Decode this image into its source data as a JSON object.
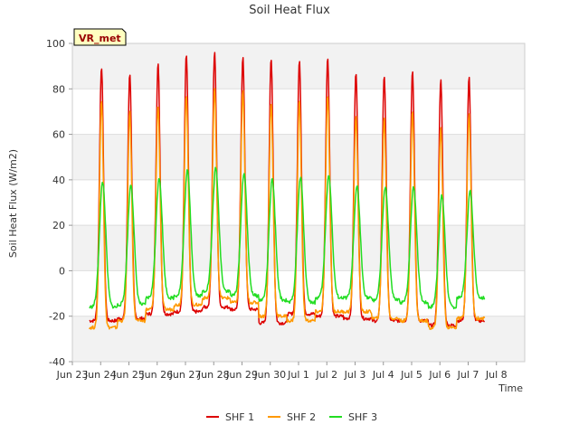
{
  "chart_data": {
    "type": "line",
    "title": "Soil Heat Flux",
    "xlabel": "Time",
    "ylabel": "Soil Heat Flux (W/m2)",
    "annotation": "VR_met",
    "ylim": [
      -40,
      100
    ],
    "yticks": [
      -40,
      -20,
      0,
      20,
      40,
      60,
      80,
      100
    ],
    "xlim_days": [
      0,
      16
    ],
    "xticks": [
      {
        "day": 0,
        "label": "Jun 23"
      },
      {
        "day": 1,
        "label": "Jun 24"
      },
      {
        "day": 2,
        "label": "Jun 25"
      },
      {
        "day": 3,
        "label": "Jun 26"
      },
      {
        "day": 4,
        "label": "Jun 27"
      },
      {
        "day": 5,
        "label": "Jun 28"
      },
      {
        "day": 6,
        "label": "Jun 29"
      },
      {
        "day": 7,
        "label": "Jun 30"
      },
      {
        "day": 8,
        "label": "Jul 1"
      },
      {
        "day": 9,
        "label": "Jul 2"
      },
      {
        "day": 10,
        "label": "Jul 3"
      },
      {
        "day": 11,
        "label": "Jul 4"
      },
      {
        "day": 12,
        "label": "Jul 5"
      },
      {
        "day": 13,
        "label": "Jul 6"
      },
      {
        "day": 14,
        "label": "Jul 7"
      },
      {
        "day": 15,
        "label": "Jul 8"
      }
    ],
    "series": [
      {
        "name": "SHF 1",
        "color": "#dd0000",
        "daily_peaks": [
          90,
          87,
          91,
          95,
          96,
          94,
          93,
          93,
          94,
          87,
          86,
          88,
          84,
          85
        ],
        "daily_minimums": [
          -22,
          -21,
          -19,
          -18,
          -16,
          -17,
          -23,
          -19,
          -20,
          -21,
          -22,
          -22,
          -24,
          -22
        ]
      },
      {
        "name": "SHF 2",
        "color": "#ff9900",
        "daily_peaks": [
          75,
          70,
          73,
          77,
          80,
          79,
          74,
          75,
          77,
          68,
          67,
          70,
          63,
          69
        ],
        "daily_minimums": [
          -25,
          -22,
          -17,
          -15,
          -12,
          -14,
          -20,
          -22,
          -18,
          -18,
          -21,
          -22,
          -25,
          -21
        ]
      },
      {
        "name": "SHF 3",
        "color": "#22dd22",
        "daily_peaks": [
          39,
          38,
          41,
          44,
          45,
          43,
          40,
          41,
          42,
          37,
          37,
          37,
          33,
          35
        ],
        "daily_minimums": [
          -16,
          -15,
          -12,
          -11,
          -9,
          -11,
          -13,
          -14,
          -12,
          -12,
          -13,
          -14,
          -16,
          -12
        ]
      }
    ],
    "legend_position": "bottom-center",
    "band_shading": true
  }
}
